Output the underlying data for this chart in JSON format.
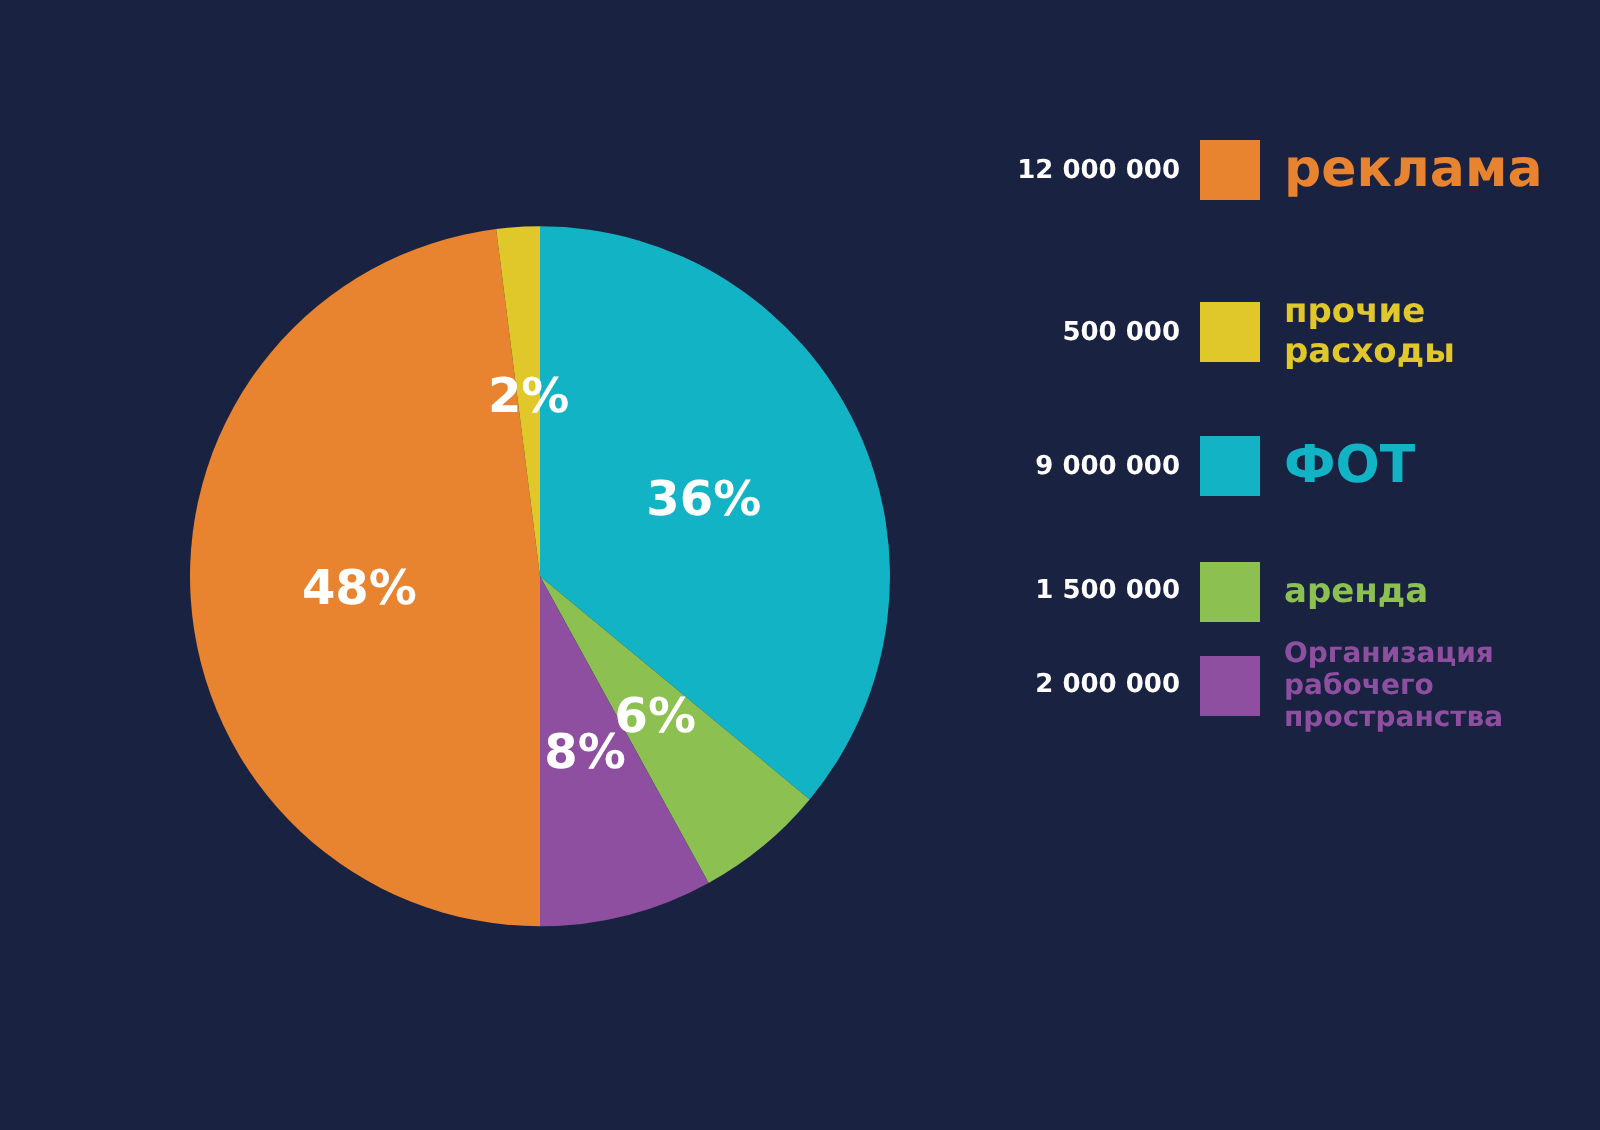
{
  "chart_data": {
    "type": "pie",
    "categories": [
      "реклама",
      "прочие расходы",
      "ФОТ",
      "аренда",
      "Организация рабочего пространства"
    ],
    "values": [
      48,
      2,
      36,
      6,
      8
    ],
    "value_labels": [
      "48%",
      "2%",
      "36%",
      "6%",
      "8%"
    ],
    "colors": [
      "#e8832f",
      "#e0c72a",
      "#12b3c4",
      "#8cc152",
      "#8e4fa0"
    ],
    "annotations": [
      "12 000 000",
      "500 000",
      "9 000 000",
      "1 500 000",
      "2 000 000"
    ],
    "legend": "right"
  }
}
